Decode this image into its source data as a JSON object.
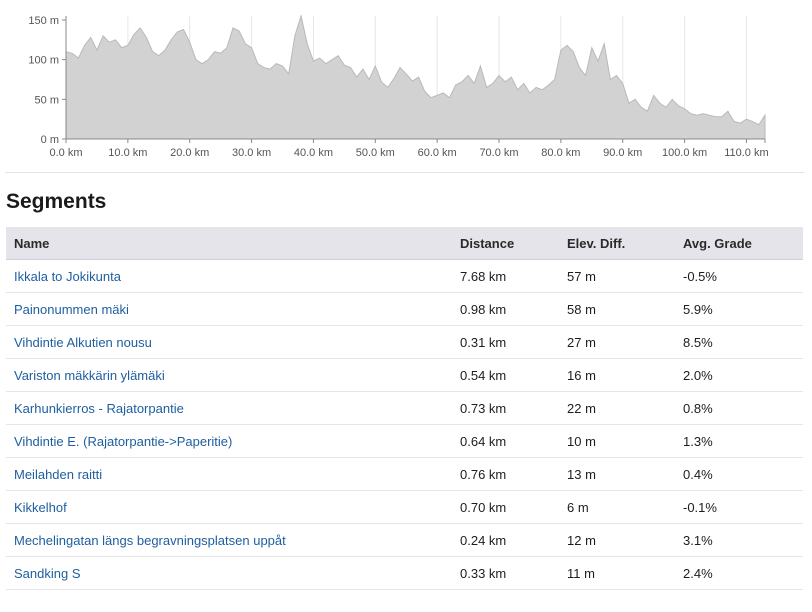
{
  "chart_data": {
    "type": "area",
    "x": [
      0,
      1,
      2,
      3,
      4,
      5,
      6,
      7,
      8,
      9,
      10,
      11,
      12,
      13,
      14,
      15,
      16,
      17,
      18,
      19,
      20,
      21,
      22,
      23,
      24,
      25,
      26,
      27,
      28,
      29,
      30,
      31,
      32,
      33,
      34,
      35,
      36,
      37,
      38,
      39,
      40,
      41,
      42,
      43,
      44,
      45,
      46,
      47,
      48,
      49,
      50,
      51,
      52,
      53,
      54,
      55,
      56,
      57,
      58,
      59,
      60,
      61,
      62,
      63,
      64,
      65,
      66,
      67,
      68,
      69,
      70,
      71,
      72,
      73,
      74,
      75,
      76,
      77,
      78,
      79,
      80,
      81,
      82,
      83,
      84,
      85,
      86,
      87,
      88,
      89,
      90,
      91,
      92,
      93,
      94,
      95,
      96,
      97,
      98,
      99,
      100,
      101,
      102,
      103,
      104,
      105,
      106,
      107,
      108,
      109,
      110,
      111,
      112,
      113
    ],
    "values": [
      110,
      108,
      102,
      118,
      128,
      112,
      130,
      122,
      125,
      115,
      118,
      132,
      140,
      128,
      110,
      105,
      112,
      125,
      135,
      138,
      122,
      100,
      95,
      100,
      110,
      108,
      115,
      140,
      136,
      120,
      115,
      95,
      90,
      88,
      95,
      92,
      82,
      130,
      155,
      120,
      98,
      102,
      95,
      100,
      105,
      93,
      90,
      78,
      88,
      75,
      92,
      72,
      65,
      76,
      90,
      82,
      73,
      78,
      60,
      52,
      55,
      58,
      52,
      68,
      72,
      80,
      70,
      92,
      65,
      70,
      80,
      72,
      78,
      62,
      70,
      58,
      65,
      62,
      68,
      75,
      112,
      118,
      110,
      90,
      80,
      115,
      98,
      120,
      75,
      80,
      70,
      45,
      50,
      40,
      35,
      55,
      45,
      40,
      50,
      42,
      38,
      32,
      30,
      32,
      30,
      28,
      28,
      35,
      22,
      20,
      25,
      22,
      18,
      30
    ],
    "xlim": [
      0,
      113
    ],
    "ylim": [
      0,
      155
    ],
    "x_ticks": [
      "0.0 km",
      "10.0 km",
      "20.0 km",
      "30.0 km",
      "40.0 km",
      "50.0 km",
      "60.0 km",
      "70.0 km",
      "80.0 km",
      "90.0 km",
      "100.0 km",
      "110.0 km"
    ],
    "y_ticks": [
      "0 m",
      "50 m",
      "100 m",
      "150 m"
    ],
    "fill_color": "#d2d2d2",
    "stroke_color": "#b9b9b9",
    "grid": true
  },
  "segments": {
    "title": "Segments",
    "headers": {
      "name": "Name",
      "distance": "Distance",
      "elev": "Elev. Diff.",
      "grade": "Avg. Grade"
    },
    "rows": [
      {
        "name": "Ikkala to Jokikunta",
        "distance": "7.68 km",
        "elev": "57 m",
        "grade": "-0.5%"
      },
      {
        "name": "Painonummen mäki",
        "distance": "0.98 km",
        "elev": "58 m",
        "grade": "5.9%"
      },
      {
        "name": "Vihdintie Alkutien nousu",
        "distance": "0.31 km",
        "elev": "27 m",
        "grade": "8.5%"
      },
      {
        "name": "Variston mäkkärin ylämäki",
        "distance": "0.54 km",
        "elev": "16 m",
        "grade": "2.0%"
      },
      {
        "name": "Karhunkierros - Rajatorpantie",
        "distance": "0.73 km",
        "elev": "22 m",
        "grade": "0.8%"
      },
      {
        "name": "Vihdintie E. (Rajatorpantie->Paperitie)",
        "distance": "0.64 km",
        "elev": "10 m",
        "grade": "1.3%"
      },
      {
        "name": "Meilahden raitti",
        "distance": "0.76 km",
        "elev": "13 m",
        "grade": "0.4%"
      },
      {
        "name": "Kikkelhof",
        "distance": "0.70 km",
        "elev": "6 m",
        "grade": "-0.1%"
      },
      {
        "name": "Mechelingatan längs begravningsplatsen uppåt",
        "distance": "0.24 km",
        "elev": "12 m",
        "grade": "3.1%"
      },
      {
        "name": "Sandking S",
        "distance": "0.33 km",
        "elev": "11 m",
        "grade": "2.4%"
      }
    ],
    "link_color": "#1f5fa0"
  }
}
